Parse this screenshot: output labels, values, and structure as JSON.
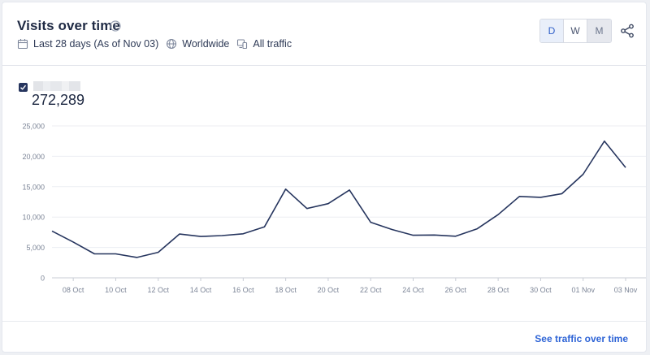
{
  "header": {
    "title": "Visits over time",
    "date_range": "Last 28 days (As of Nov 03)",
    "region": "Worldwide",
    "traffic": "All traffic"
  },
  "period_buttons": [
    {
      "label": "D",
      "state": "active"
    },
    {
      "label": "W",
      "state": "normal"
    },
    {
      "label": "M",
      "state": "muted"
    }
  ],
  "legend": {
    "total": "272,289",
    "line_color": "#26355e"
  },
  "footer": {
    "link": "See traffic over time"
  },
  "chart_data": {
    "type": "line",
    "x": [
      "07 Oct",
      "08 Oct",
      "09 Oct",
      "10 Oct",
      "11 Oct",
      "12 Oct",
      "13 Oct",
      "14 Oct",
      "15 Oct",
      "16 Oct",
      "17 Oct",
      "18 Oct",
      "19 Oct",
      "20 Oct",
      "21 Oct",
      "22 Oct",
      "23 Oct",
      "24 Oct",
      "25 Oct",
      "26 Oct",
      "27 Oct",
      "28 Oct",
      "29 Oct",
      "30 Oct",
      "31 Oct",
      "01 Nov",
      "02 Nov",
      "03 Nov"
    ],
    "series": [
      {
        "values": [
          7700,
          5900,
          3950,
          3950,
          3350,
          4200,
          7200,
          6800,
          6950,
          7250,
          8400,
          14600,
          11400,
          12200,
          14450,
          9150,
          7950,
          7000,
          7050,
          6850,
          8050,
          10400,
          13400,
          13250,
          13850,
          17050,
          22500,
          18150
        ]
      }
    ],
    "xtick_labels": [
      "08 Oct",
      "10 Oct",
      "12 Oct",
      "14 Oct",
      "16 Oct",
      "18 Oct",
      "20 Oct",
      "22 Oct",
      "24 Oct",
      "26 Oct",
      "28 Oct",
      "30 Oct",
      "01 Nov",
      "03 Nov"
    ],
    "yticks": [
      "0",
      "5,000",
      "10,000",
      "15,000",
      "20,000",
      "25,000"
    ],
    "ylim": [
      0,
      25000
    ],
    "grid": true
  }
}
